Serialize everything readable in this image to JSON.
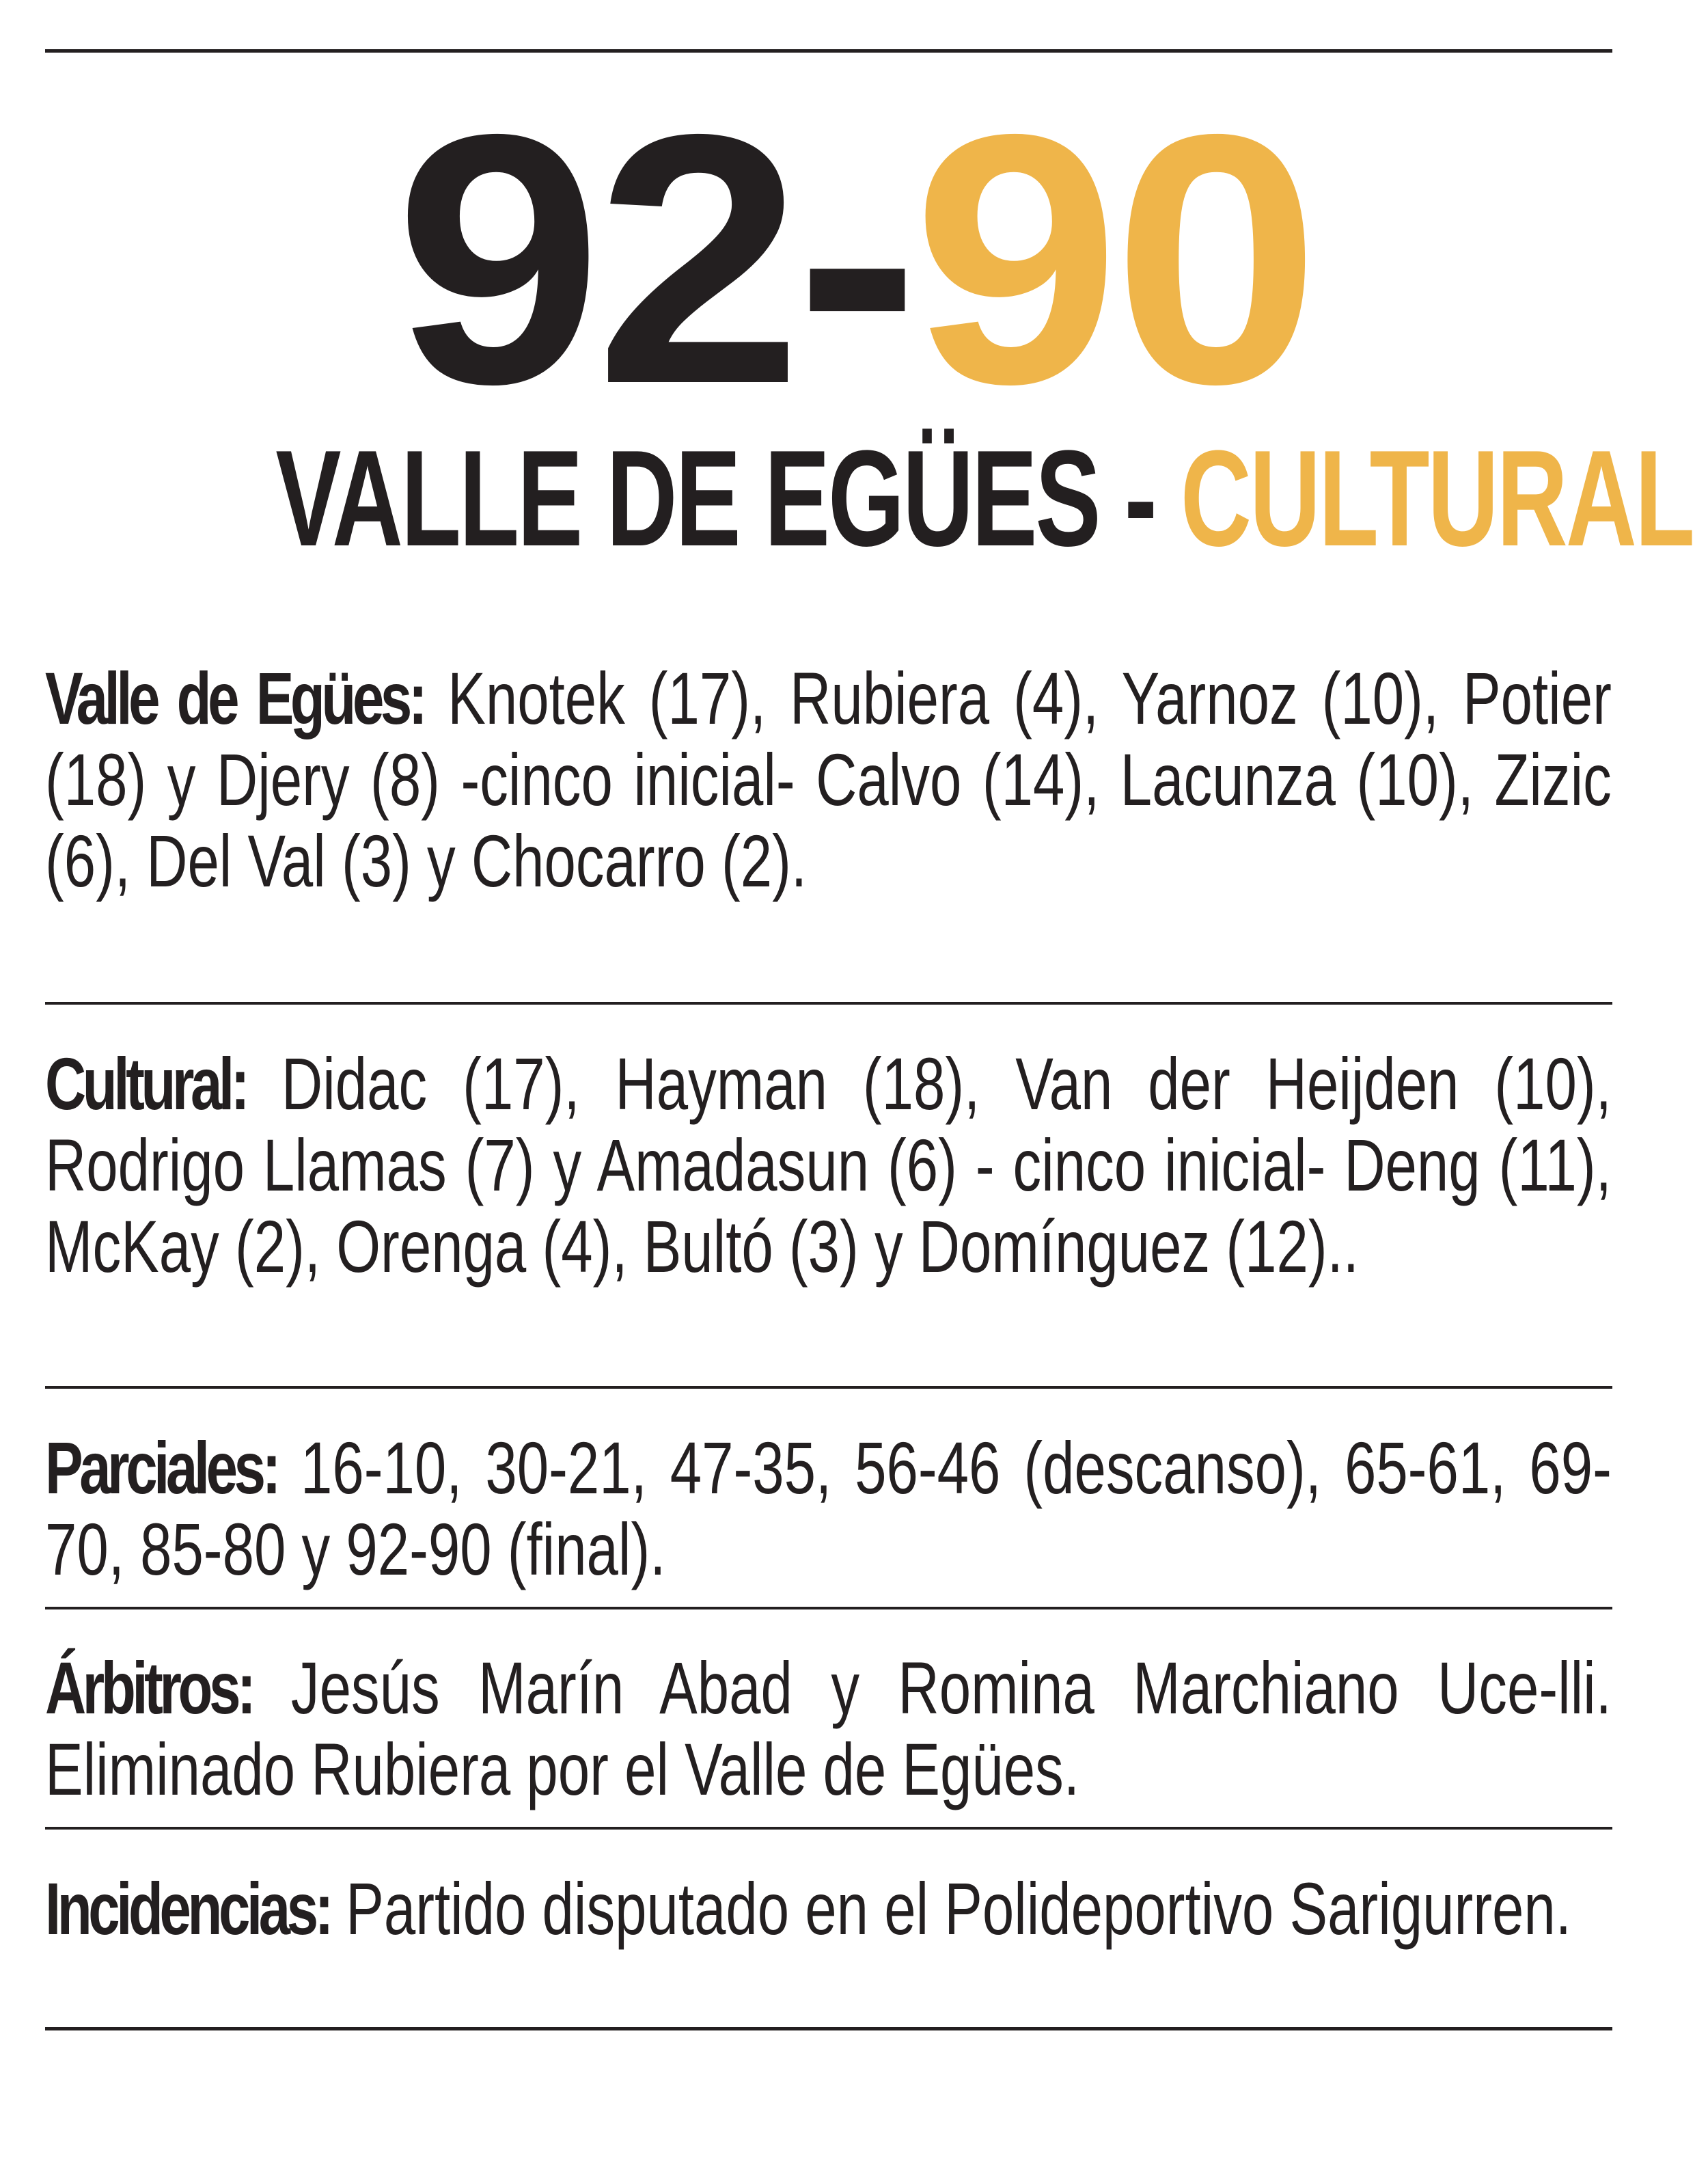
{
  "score": {
    "home": "92",
    "separator": "-",
    "away": "90"
  },
  "teams": {
    "home": "VALLE DE EGÜES",
    "separator": " - ",
    "away": "CULTURAL"
  },
  "colors": {
    "text": "#231f20",
    "accent": "#efb54a"
  },
  "sections": [
    {
      "label": "Valle de Egües:",
      "text": " Knotek (17), Rubiera (4), Yarnoz (10), Potier (18) y Djery (8) -cinco inicial- Calvo (14), Lacunza (10), Zizic (6), Del Val (3) y Chocarro (2)."
    },
    {
      "label": "Cultural:",
      "text": " Didac (17), Hayman (18), Van der Heijden (10), Rodrigo Llamas (7) y Amadasun (6) - cinco inicial- Deng (11), McKay (2), Orenga (4), Bultó (3) y Domínguez (12).."
    },
    {
      "label": "Parciales:",
      "text": " 16-10, 30-21, 47-35, 56-46 (descanso), 65-61, 69-70, 85-80 y 92-90 (final)."
    },
    {
      "label": "Árbitros:",
      "text": " Jesús Marín Abad y Romina Marchiano Uce-lli. Eliminado Rubiera por el Valle de Egües."
    },
    {
      "label": "Incidencias:",
      "text": " Partido disputado en el Polideportivo Sarigurren."
    }
  ]
}
